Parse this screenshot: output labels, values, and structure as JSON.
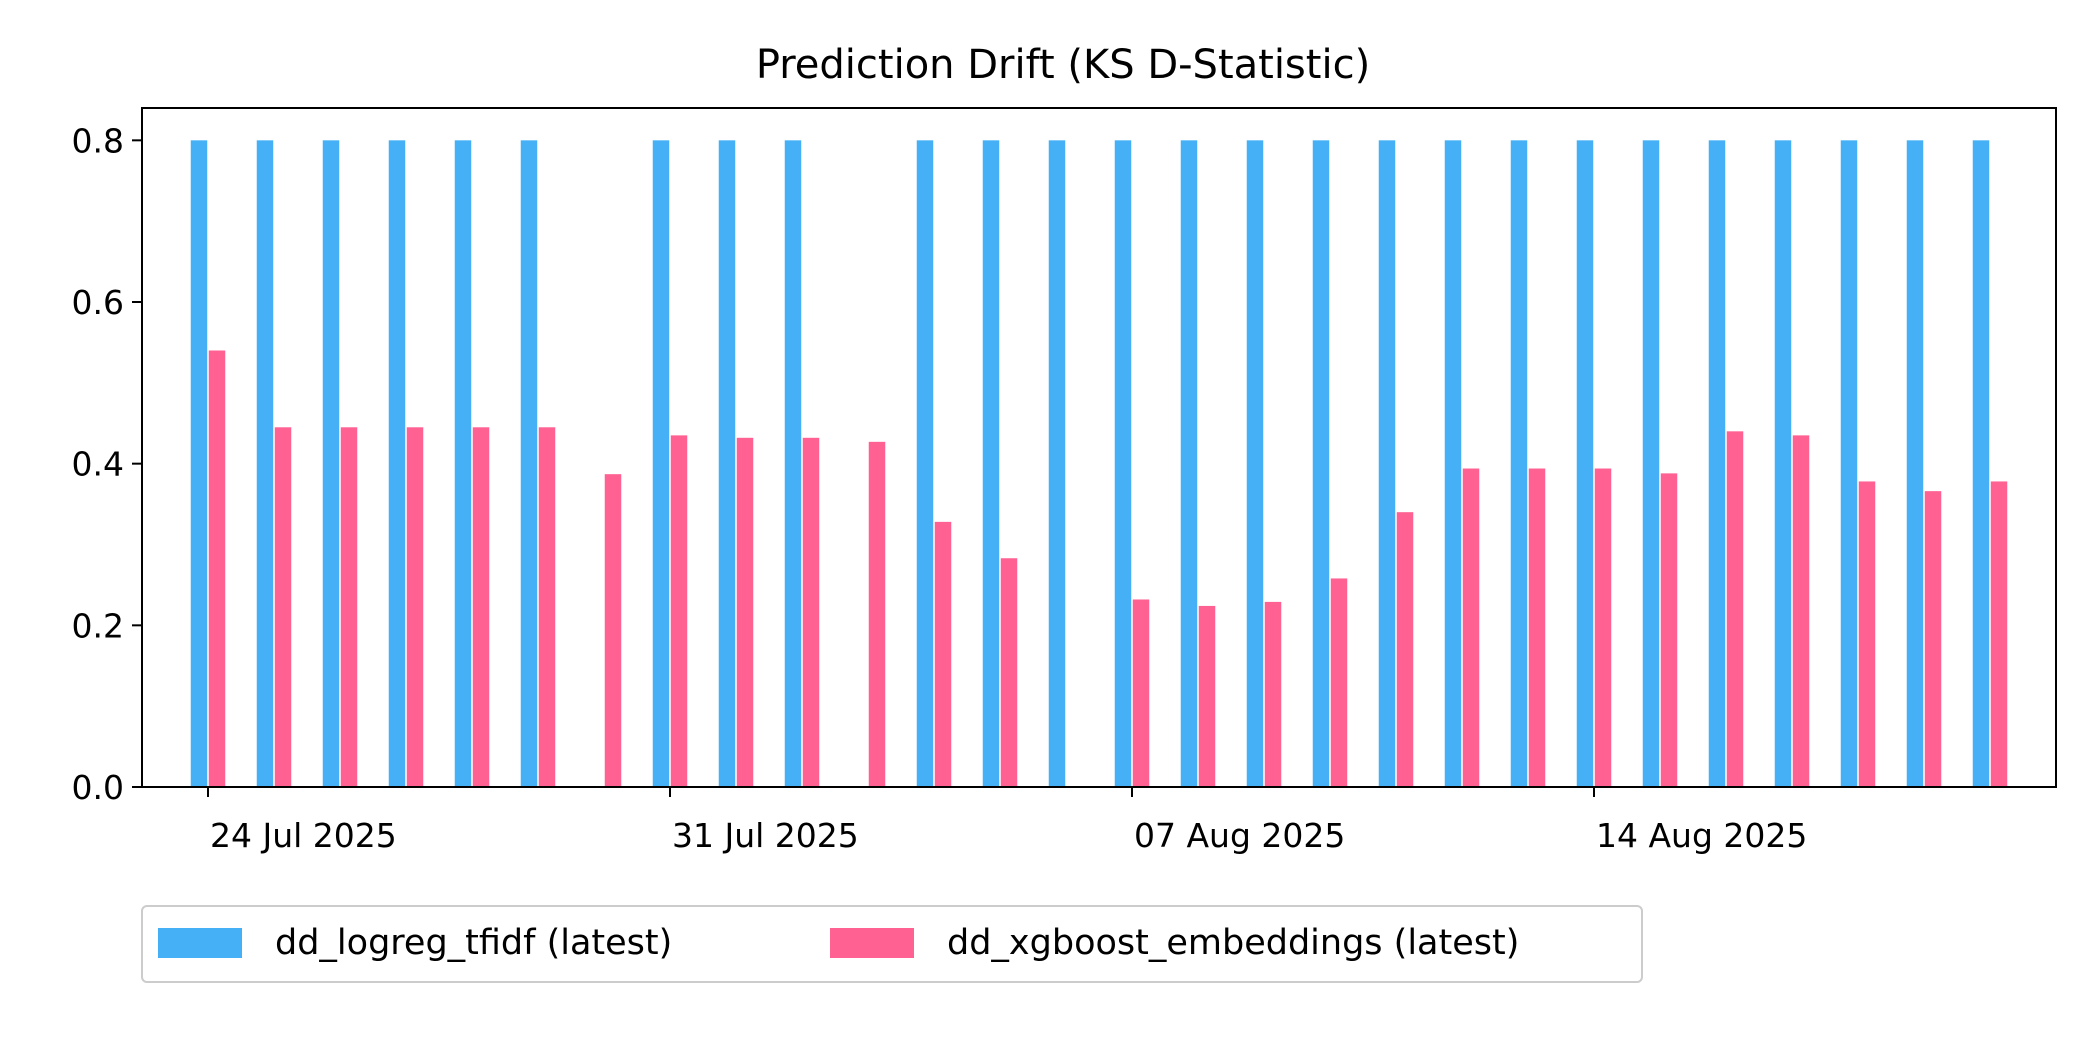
{
  "chart_data": {
    "type": "bar",
    "title": "Prediction Drift (KS D-Statistic)",
    "xlabel": "",
    "ylabel": "",
    "ylim": [
      0,
      0.84
    ],
    "yticks": [
      "0.0",
      "0.2",
      "0.4",
      "0.6",
      "0.8"
    ],
    "ytick_values": [
      0,
      0.2,
      0.4,
      0.6,
      0.8
    ],
    "x_range": [
      "2025-07-23",
      "2025-08-21"
    ],
    "xticks": [
      {
        "date": "2025-07-24",
        "label": "24 Jul 2025"
      },
      {
        "date": "2025-07-31",
        "label": "31 Jul 2025"
      },
      {
        "date": "2025-08-07",
        "label": "07 Aug 2025"
      },
      {
        "date": "2025-08-14",
        "label": "14 Aug 2025"
      }
    ],
    "grid": false,
    "legend_position": "bottom-left",
    "dates": [
      "2025-07-24",
      "2025-07-25",
      "2025-07-26",
      "2025-07-27",
      "2025-07-28",
      "2025-07-29",
      "2025-07-30",
      "2025-07-31",
      "2025-08-01",
      "2025-08-02",
      "2025-08-03",
      "2025-08-04",
      "2025-08-05",
      "2025-08-06",
      "2025-08-07",
      "2025-08-08",
      "2025-08-09",
      "2025-08-10",
      "2025-08-11",
      "2025-08-12",
      "2025-08-13",
      "2025-08-14",
      "2025-08-15",
      "2025-08-16",
      "2025-08-17",
      "2025-08-18",
      "2025-08-19",
      "2025-08-20"
    ],
    "series": [
      {
        "name": "dd_logreg_tfidf (latest)",
        "color": "#45b0f5",
        "values": [
          0.8,
          0.8,
          0.8,
          0.8,
          0.8,
          0.8,
          null,
          0.8,
          0.8,
          0.8,
          null,
          0.8,
          0.8,
          0.8,
          0.8,
          0.8,
          0.8,
          0.8,
          0.8,
          0.8,
          0.8,
          0.8,
          0.8,
          0.8,
          0.8,
          0.8,
          0.8,
          0.8
        ]
      },
      {
        "name": "dd_xgboost_embeddings (latest)",
        "color": "#ff6193",
        "values": [
          0.54,
          0.445,
          0.445,
          0.445,
          0.445,
          0.445,
          0.387,
          0.435,
          0.432,
          0.432,
          0.427,
          0.328,
          0.283,
          null,
          0.232,
          0.224,
          0.229,
          0.258,
          0.34,
          0.394,
          0.394,
          0.394,
          0.388,
          0.44,
          0.435,
          0.378,
          0.366,
          0.378
        ]
      }
    ]
  }
}
